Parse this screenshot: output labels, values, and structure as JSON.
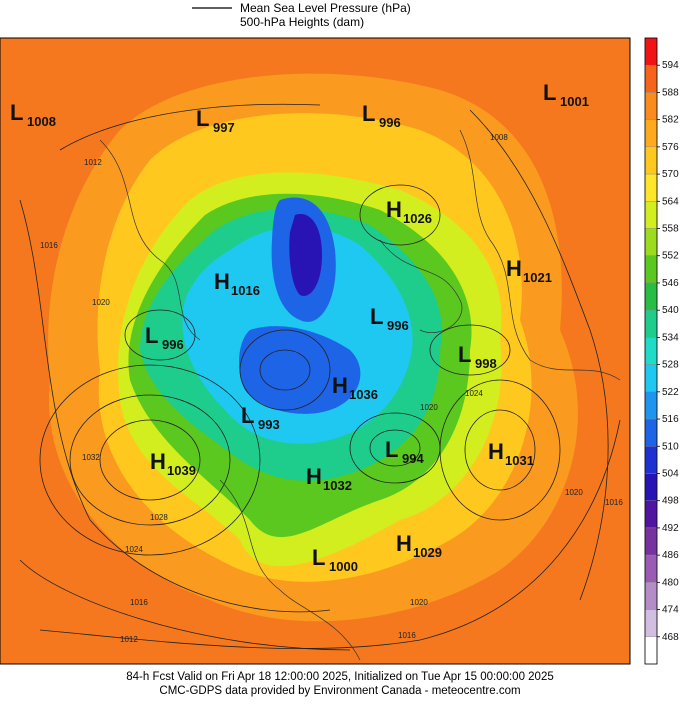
{
  "header": {
    "legend_line_label": "Mean Sea Level Pressure (hPa)",
    "shading_label": "500-hPa Heights (dam)"
  },
  "centers": [
    {
      "letter": "L",
      "pressure": "1008"
    },
    {
      "letter": "L",
      "pressure": "997"
    },
    {
      "letter": "L",
      "pressure": "996"
    },
    {
      "letter": "L",
      "pressure": "1001"
    },
    {
      "letter": "H",
      "pressure": "1026"
    },
    {
      "letter": "H",
      "pressure": "1021"
    },
    {
      "letter": "H",
      "pressure": "1016"
    },
    {
      "letter": "L",
      "pressure": "996"
    },
    {
      "letter": "L",
      "pressure": "996"
    },
    {
      "letter": "L",
      "pressure": "998"
    },
    {
      "letter": "H",
      "pressure": "1036"
    },
    {
      "letter": "L",
      "pressure": "993"
    },
    {
      "letter": "L",
      "pressure": "994"
    },
    {
      "letter": "H",
      "pressure": "1031"
    },
    {
      "letter": "H",
      "pressure": "1039"
    },
    {
      "letter": "H",
      "pressure": "1032"
    },
    {
      "letter": "H",
      "pressure": "1029"
    },
    {
      "letter": "L",
      "pressure": "1000"
    }
  ],
  "isobar_labels": [
    "1012",
    "1016",
    "1020",
    "1032",
    "1028",
    "1024",
    "1016",
    "1012",
    "1008",
    "1024",
    "1020",
    "1020",
    "1016",
    "1016",
    "1020"
  ],
  "colorbar": {
    "labels": [
      "594",
      "588",
      "582",
      "576",
      "570",
      "564",
      "558",
      "552",
      "546",
      "540",
      "534",
      "528",
      "522",
      "516",
      "510",
      "504",
      "498",
      "492",
      "486",
      "480",
      "474",
      "468"
    ],
    "colors": [
      "#f01414",
      "#f5641a",
      "#fa8c1e",
      "#ffaa1e",
      "#ffc81e",
      "#ffe628",
      "#d2ee1e",
      "#9bdc1e",
      "#5ac81e",
      "#28be46",
      "#1ecd8c",
      "#1edcc8",
      "#1ec8f0",
      "#1e96f0",
      "#1e64e6",
      "#1e32d2",
      "#2814b4",
      "#5014a0",
      "#7832a0",
      "#9b5ab4",
      "#b48cc8",
      "#d2bee1",
      "#ffffff"
    ]
  },
  "footer": {
    "line1": "84-h Fcst Valid on Fri Apr 18 12:00:00 2025, Initialized on Tue Apr 15 00:00:00 2025",
    "line2": "CMC-GDPS data provided by Environment Canada - meteocentre.com"
  }
}
